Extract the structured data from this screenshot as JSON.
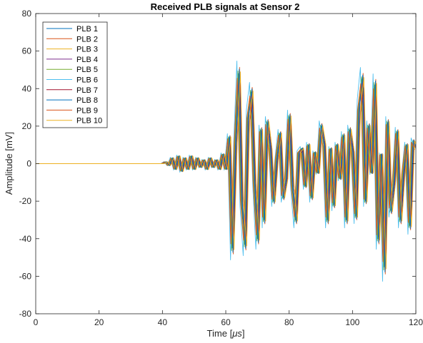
{
  "chart_data": {
    "type": "line",
    "title": "Received PLB signals at Sensor 2",
    "xlabel_main": "Time [",
    "xlabel_unit": "μs",
    "xlabel_end": "]",
    "ylabel": "Amplitude [mV]",
    "xlim": [
      0,
      120
    ],
    "ylim": [
      -80,
      80
    ],
    "xticks": [
      "0",
      "20",
      "40",
      "60",
      "80",
      "100",
      "120"
    ],
    "yticks": [
      "-80",
      "-60",
      "-40",
      "-20",
      "0",
      "20",
      "40",
      "60",
      "80"
    ],
    "xtick_values": [
      0,
      20,
      40,
      60,
      80,
      100,
      120
    ],
    "ytick_values": [
      -80,
      -60,
      -40,
      -20,
      0,
      20,
      40,
      60,
      80
    ],
    "grid": false,
    "legend_position": "top-left",
    "x": [
      0,
      40,
      41,
      42,
      43,
      44,
      45,
      46,
      47,
      48,
      49,
      50,
      51,
      52,
      53,
      54,
      55,
      56,
      57,
      58,
      59,
      60,
      61,
      62,
      63,
      64,
      65,
      66,
      67,
      68,
      69,
      70,
      71,
      72,
      73,
      74,
      75,
      76,
      77,
      78,
      79,
      80,
      81,
      82,
      83,
      84,
      85,
      86,
      87,
      88,
      89,
      90,
      91,
      92,
      93,
      94,
      95,
      96,
      97,
      98,
      99,
      100,
      101,
      102,
      103,
      104,
      105,
      106,
      107,
      108,
      109,
      110,
      111,
      112,
      113,
      114,
      115,
      116,
      117,
      118,
      119,
      120
    ],
    "base_values": [
      0,
      0,
      1,
      -1,
      3,
      -3,
      4,
      -4,
      3,
      -3,
      4,
      -3,
      3,
      -2,
      2,
      -3,
      3,
      -2,
      2,
      -3,
      5,
      -3,
      14,
      -45,
      10,
      48,
      -20,
      -43,
      25,
      38,
      -10,
      -40,
      18,
      -30,
      22,
      8,
      -20,
      2,
      16,
      -18,
      -8,
      25,
      -12,
      -30,
      6,
      8,
      -12,
      10,
      -18,
      6,
      -5,
      20,
      10,
      -30,
      8,
      -22,
      10,
      -8,
      15,
      -30,
      18,
      6,
      -28,
      30,
      45,
      -20,
      20,
      -5,
      42,
      -40,
      5,
      -55,
      22,
      -25,
      -10,
      17,
      -30,
      -5,
      10,
      -33,
      12,
      8
    ],
    "series": [
      {
        "name": "PLB 1",
        "color": "#0072BD",
        "shift": 0.0,
        "scale": 1.0
      },
      {
        "name": "PLB 2",
        "color": "#D95319",
        "shift": 0.35,
        "scale": 1.07
      },
      {
        "name": "PLB 3",
        "color": "#EDB120",
        "shift": -0.3,
        "scale": 0.93
      },
      {
        "name": "PLB 4",
        "color": "#7E2F8E",
        "shift": 0.15,
        "scale": 0.97
      },
      {
        "name": "PLB 5",
        "color": "#77AC30",
        "shift": -0.15,
        "scale": 1.03
      },
      {
        "name": "PLB 6",
        "color": "#4DBEEE",
        "shift": -0.5,
        "scale": 1.14
      },
      {
        "name": "PLB 7",
        "color": "#A2142F",
        "shift": 0.5,
        "scale": 0.9
      },
      {
        "name": "PLB 8",
        "color": "#0072BD",
        "shift": 0.25,
        "scale": 1.05
      },
      {
        "name": "PLB 9",
        "color": "#D95319",
        "shift": -0.4,
        "scale": 0.95
      },
      {
        "name": "PLB 10",
        "color": "#EDB120",
        "shift": 0.6,
        "scale": 1.02
      }
    ]
  }
}
